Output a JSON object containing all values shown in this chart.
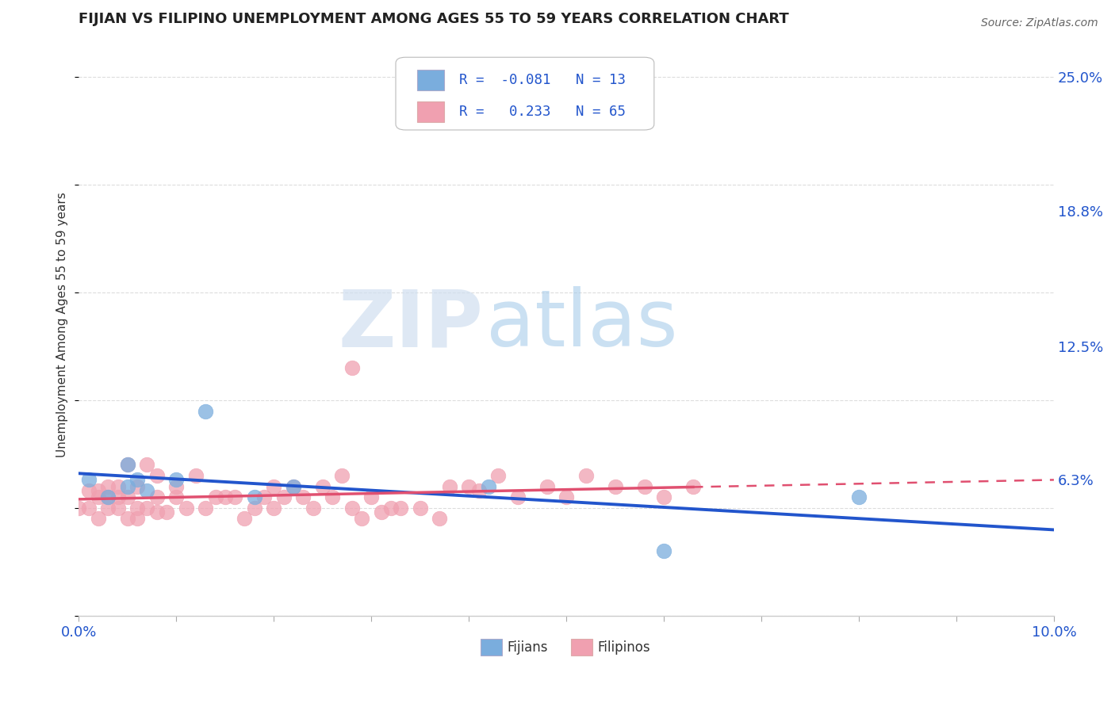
{
  "title": "FIJIAN VS FILIPINO UNEMPLOYMENT AMONG AGES 55 TO 59 YEARS CORRELATION CHART",
  "source": "Source: ZipAtlas.com",
  "ylabel": "Unemployment Among Ages 55 to 59 years",
  "xlim": [
    0.0,
    0.1
  ],
  "ylim": [
    0.0,
    0.27
  ],
  "ytick_positions": [
    0.0,
    0.063,
    0.125,
    0.188,
    0.25
  ],
  "ytick_labels": [
    "",
    "6.3%",
    "12.5%",
    "18.8%",
    "25.0%"
  ],
  "fijian_color": "#7aaddd",
  "fijian_edge": "#7aaddd",
  "filipino_color": "#f0a0b0",
  "filipino_edge": "#f0a0b0",
  "fijian_line_color": "#2255cc",
  "filipino_line_color": "#e05070",
  "fijian_R": -0.081,
  "fijian_N": 13,
  "filipino_R": 0.233,
  "filipino_N": 65,
  "fijian_x": [
    0.001,
    0.003,
    0.005,
    0.005,
    0.006,
    0.007,
    0.01,
    0.013,
    0.018,
    0.022,
    0.042,
    0.06,
    0.08
  ],
  "fijian_y": [
    0.063,
    0.055,
    0.06,
    0.07,
    0.063,
    0.058,
    0.063,
    0.095,
    0.055,
    0.06,
    0.06,
    0.03,
    0.055
  ],
  "filipino_x": [
    0.0,
    0.001,
    0.001,
    0.002,
    0.002,
    0.002,
    0.003,
    0.003,
    0.003,
    0.004,
    0.004,
    0.004,
    0.005,
    0.005,
    0.005,
    0.006,
    0.006,
    0.006,
    0.007,
    0.007,
    0.008,
    0.008,
    0.008,
    0.009,
    0.01,
    0.01,
    0.011,
    0.012,
    0.013,
    0.014,
    0.015,
    0.016,
    0.017,
    0.018,
    0.019,
    0.02,
    0.02,
    0.021,
    0.022,
    0.023,
    0.024,
    0.025,
    0.026,
    0.027,
    0.028,
    0.029,
    0.03,
    0.031,
    0.032,
    0.033,
    0.035,
    0.037,
    0.038,
    0.04,
    0.041,
    0.043,
    0.045,
    0.048,
    0.05,
    0.052,
    0.055,
    0.058,
    0.06,
    0.063,
    0.028
  ],
  "filipino_y": [
    0.05,
    0.058,
    0.05,
    0.045,
    0.055,
    0.058,
    0.05,
    0.055,
    0.06,
    0.05,
    0.055,
    0.06,
    0.045,
    0.055,
    0.07,
    0.06,
    0.05,
    0.045,
    0.05,
    0.07,
    0.048,
    0.055,
    0.065,
    0.048,
    0.055,
    0.06,
    0.05,
    0.065,
    0.05,
    0.055,
    0.055,
    0.055,
    0.045,
    0.05,
    0.055,
    0.05,
    0.06,
    0.055,
    0.06,
    0.055,
    0.05,
    0.06,
    0.055,
    0.065,
    0.05,
    0.045,
    0.055,
    0.048,
    0.05,
    0.05,
    0.05,
    0.045,
    0.06,
    0.06,
    0.058,
    0.065,
    0.055,
    0.06,
    0.055,
    0.065,
    0.06,
    0.06,
    0.055,
    0.06,
    0.115
  ],
  "watermark_zip": "ZIP",
  "watermark_atlas": "atlas",
  "background_color": "#ffffff",
  "grid_color": "#dddddd"
}
